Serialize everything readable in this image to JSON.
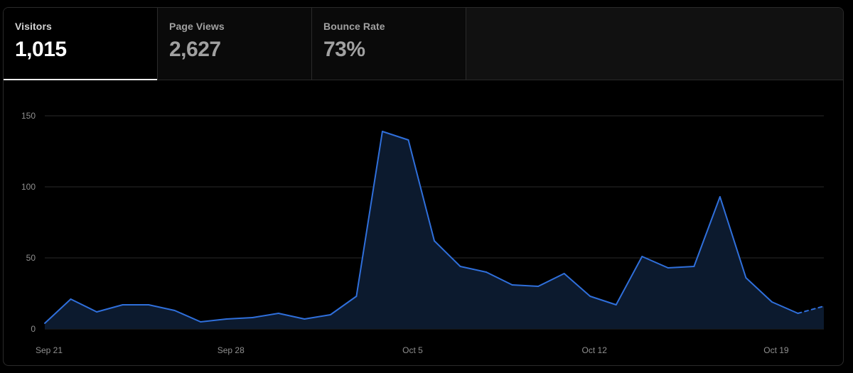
{
  "tabs": [
    {
      "label": "Visitors",
      "value": "1,015",
      "active": true
    },
    {
      "label": "Page Views",
      "value": "2,627",
      "active": false
    },
    {
      "label": "Bounce Rate",
      "value": "73%",
      "active": false
    }
  ],
  "colors": {
    "line": "#2f6fdb",
    "area": "#0c1a2e",
    "grid": "#2a2a2a",
    "tick_text": "#8f8f8f"
  },
  "chart_data": {
    "type": "area",
    "title": "",
    "xlabel": "",
    "ylabel": "",
    "ylim": [
      0,
      150
    ],
    "yticks": [
      0,
      50,
      100,
      150
    ],
    "grid": true,
    "xtick_labels": [
      {
        "index": 0,
        "label": "Sep 21"
      },
      {
        "index": 7,
        "label": "Sep 28"
      },
      {
        "index": 14,
        "label": "Oct 5"
      },
      {
        "index": 21,
        "label": "Oct 12"
      },
      {
        "index": 28,
        "label": "Oct 19"
      }
    ],
    "dates": [
      "Sep 21",
      "Sep 22",
      "Sep 23",
      "Sep 24",
      "Sep 25",
      "Sep 26",
      "Sep 27",
      "Sep 28",
      "Sep 29",
      "Sep 30",
      "Oct 1",
      "Oct 2",
      "Oct 3",
      "Oct 4",
      "Oct 5",
      "Oct 6",
      "Oct 7",
      "Oct 8",
      "Oct 9",
      "Oct 10",
      "Oct 11",
      "Oct 12",
      "Oct 13",
      "Oct 14",
      "Oct 15",
      "Oct 16",
      "Oct 17",
      "Oct 18",
      "Oct 19",
      "Oct 20",
      "Oct 21"
    ],
    "series": [
      {
        "values": [
          4,
          21,
          12,
          17,
          17,
          13,
          5,
          7,
          8,
          11,
          7,
          10,
          23,
          139,
          133,
          62,
          44,
          40,
          31,
          30,
          39,
          23,
          17,
          51,
          43,
          44,
          93,
          36,
          19,
          11,
          16
        ],
        "partial_from_index": 29
      }
    ]
  }
}
